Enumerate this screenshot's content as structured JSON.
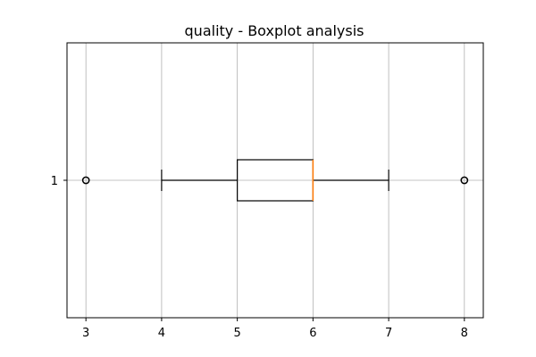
{
  "chart_data": {
    "type": "boxplot",
    "orientation": "horizontal",
    "title": "quality - Boxplot analysis",
    "xlabel": "",
    "ylabel": "",
    "xlim": [
      2.75,
      8.25
    ],
    "xticks": [
      3,
      4,
      5,
      6,
      7,
      8
    ],
    "grid": true,
    "series": [
      {
        "category": "1",
        "whisker_low": 4,
        "q1": 5,
        "median": 6,
        "q3": 6,
        "whisker_high": 7,
        "fliers": [
          3,
          8
        ]
      }
    ],
    "colors": {
      "median": "#ff7f0e",
      "box": "#000000",
      "grid": "#b0b0b0"
    }
  }
}
